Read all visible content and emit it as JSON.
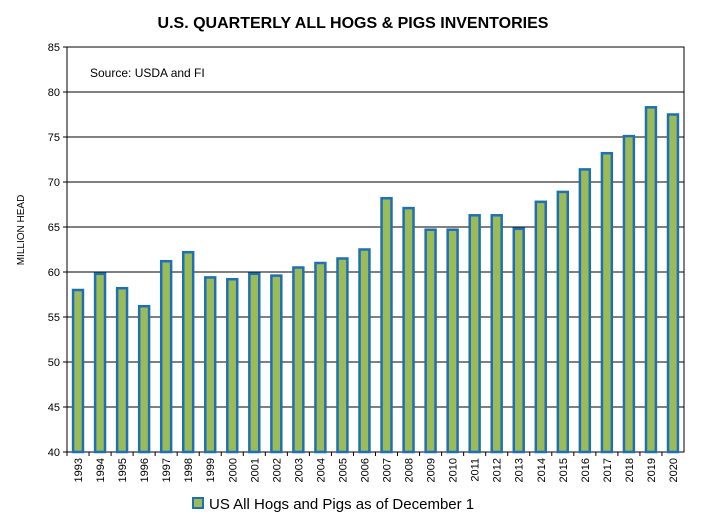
{
  "chart_data": {
    "type": "bar",
    "title": "U.S. QUARTERLY ALL HOGS & PIGS INVENTORIES",
    "annotation": "Source: USDA and FI",
    "xlabel": "",
    "ylabel": "MILLION HEAD",
    "ylim": [
      40,
      85
    ],
    "yticks": [
      "85",
      "80",
      "75",
      "70",
      "65",
      "60",
      "55",
      "50",
      "45",
      "40"
    ],
    "grid": true,
    "legend_position": "bottom",
    "categories": [
      "1993",
      "1994",
      "1995",
      "1996",
      "1997",
      "1998",
      "1999",
      "2000",
      "2001",
      "2002",
      "2003",
      "2004",
      "2005",
      "2006",
      "2007",
      "2008",
      "2009",
      "2010",
      "2011",
      "2012",
      "2013",
      "2014",
      "2015",
      "2016",
      "2017",
      "2018",
      "2019",
      "2020"
    ],
    "series": [
      {
        "name": "US All Hogs and Pigs as of December 1",
        "values": [
          58.0,
          59.8,
          58.2,
          56.2,
          61.2,
          62.2,
          59.4,
          59.2,
          59.8,
          59.6,
          60.5,
          61.0,
          61.5,
          62.5,
          68.2,
          67.1,
          64.7,
          64.7,
          66.3,
          66.3,
          64.8,
          67.8,
          68.9,
          71.4,
          73.2,
          75.1,
          78.3,
          77.5
        ],
        "fill": "#9bbb59",
        "stroke": "#1f6fb4"
      }
    ]
  }
}
